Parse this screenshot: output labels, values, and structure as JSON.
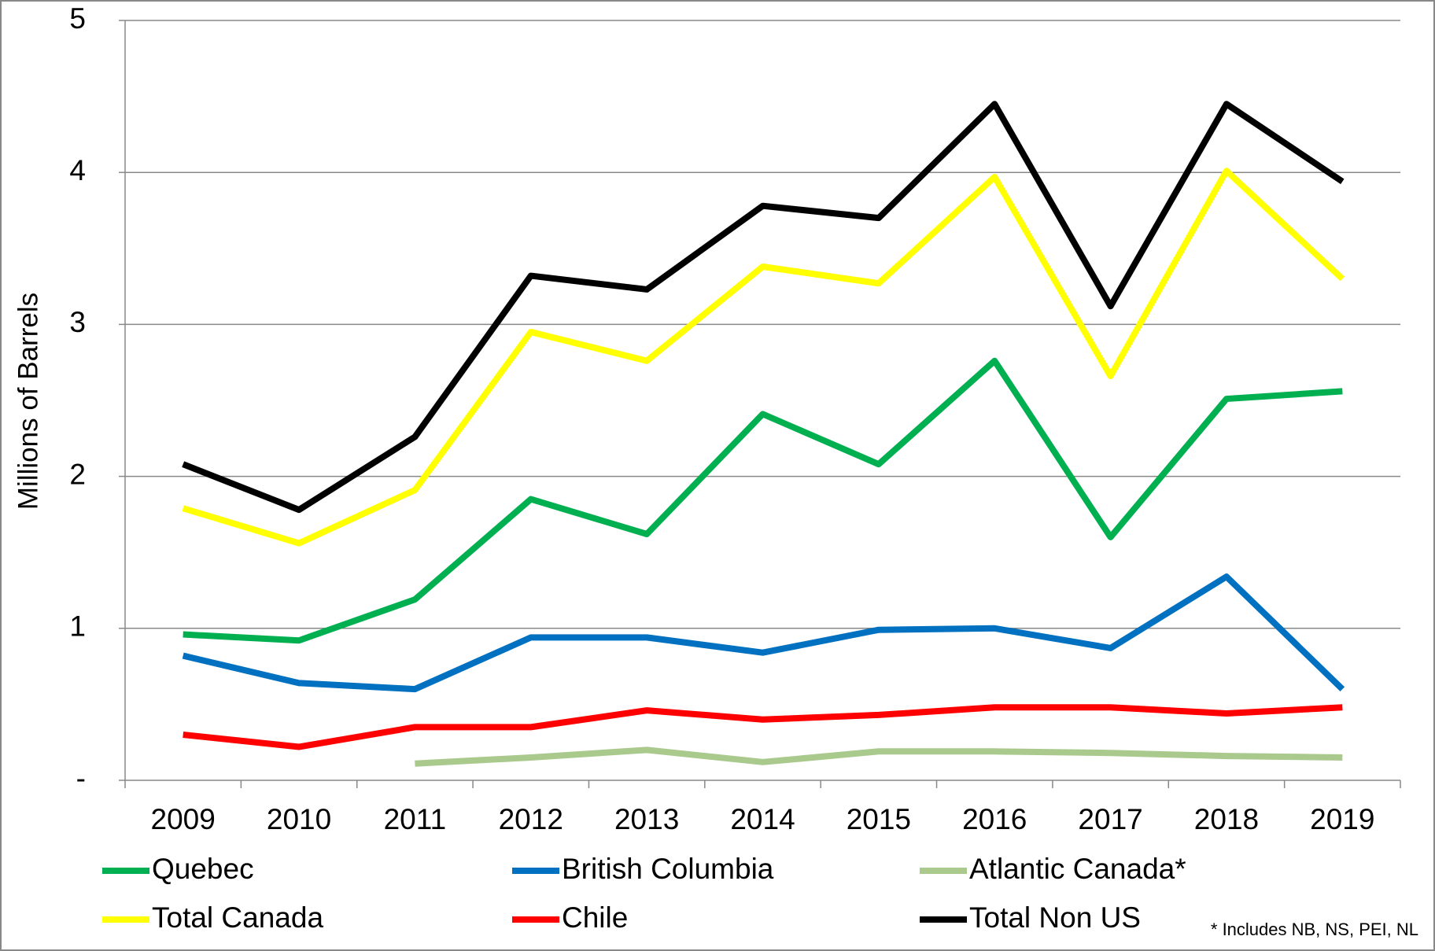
{
  "chart_data": {
    "type": "line",
    "ylabel": "Millions of Barrels",
    "categories": [
      "2009",
      "2010",
      "2011",
      "2012",
      "2013",
      "2014",
      "2015",
      "2016",
      "2017",
      "2018",
      "2019"
    ],
    "series": [
      {
        "name": "Quebec",
        "color": "#00b050",
        "values": [
          0.96,
          0.92,
          1.19,
          1.85,
          1.62,
          2.41,
          2.08,
          2.76,
          1.6,
          2.51,
          2.56
        ]
      },
      {
        "name": "British Columbia",
        "color": "#0070c0",
        "values": [
          0.82,
          0.64,
          0.6,
          0.94,
          0.94,
          0.84,
          0.99,
          1.0,
          0.87,
          1.34,
          0.6
        ]
      },
      {
        "name": "Atlantic Canada*",
        "color": "#a9c98d",
        "values": [
          null,
          null,
          0.11,
          0.15,
          0.2,
          0.12,
          0.19,
          0.19,
          0.18,
          0.16,
          0.15
        ]
      },
      {
        "name": "Total Canada",
        "color": "#ffff00",
        "values": [
          1.79,
          1.56,
          1.91,
          2.95,
          2.76,
          3.38,
          3.27,
          3.97,
          2.66,
          4.01,
          3.3
        ]
      },
      {
        "name": "Chile",
        "color": "#ff0000",
        "values": [
          0.3,
          0.22,
          0.35,
          0.35,
          0.46,
          0.4,
          0.43,
          0.48,
          0.48,
          0.44,
          0.48
        ]
      },
      {
        "name": "Total Non US",
        "color": "#000000",
        "values": [
          2.08,
          1.78,
          2.26,
          3.32,
          3.23,
          3.78,
          3.7,
          4.45,
          3.12,
          4.45,
          3.94
        ]
      }
    ],
    "ylim": [
      0,
      5
    ],
    "yticks": [
      {
        "value": 0,
        "label": "-"
      },
      1,
      2,
      3,
      4,
      5
    ],
    "grid": true,
    "legend": "bottom",
    "footnote": "* Includes NB, NS, PEI, NL"
  }
}
